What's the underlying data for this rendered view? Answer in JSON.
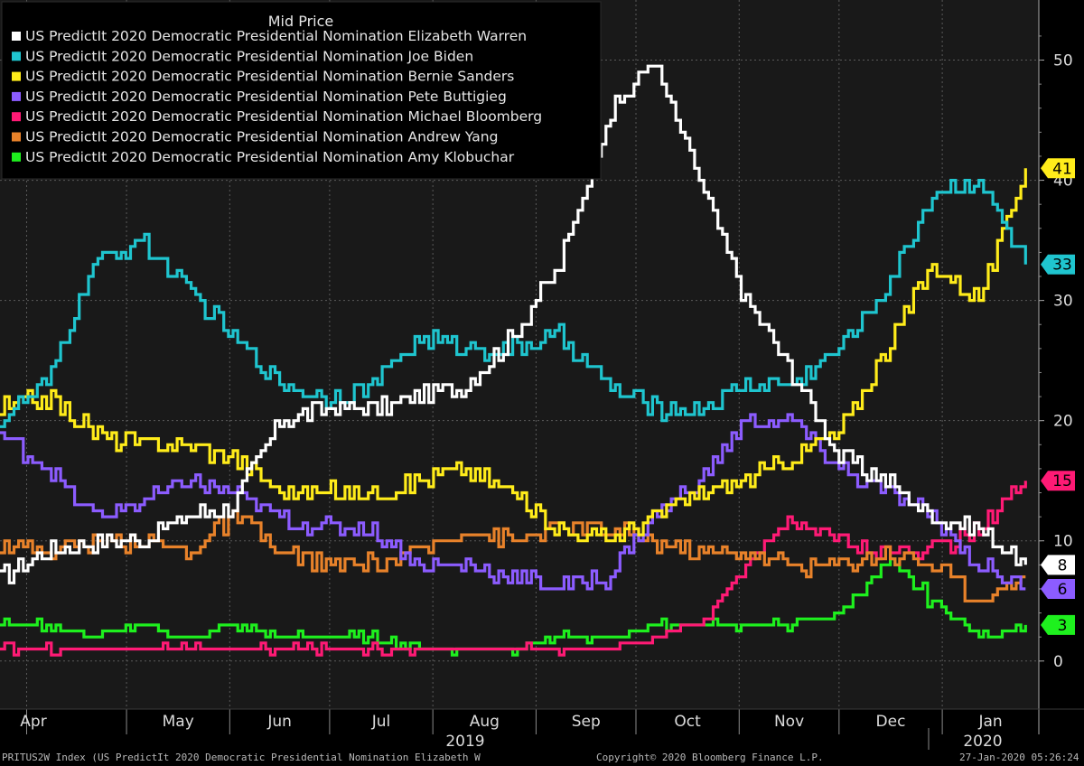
{
  "chart_data": {
    "type": "line",
    "legend_title": "Mid Price",
    "legend_position": "top-left",
    "grid": true,
    "ylim": [
      -4,
      55
    ],
    "y_ticks": [
      0,
      10,
      20,
      30,
      40,
      50
    ],
    "x_ticks": [
      "Apr",
      "May",
      "Jun",
      "Jul",
      "Aug",
      "Sep",
      "Oct",
      "Nov",
      "Dec",
      "Jan"
    ],
    "year_labels": [
      "2019",
      "2020"
    ],
    "x_dates": [
      "2019-03-24",
      "2019-04-07",
      "2019-04-21",
      "2019-05-05",
      "2019-05-19",
      "2019-06-02",
      "2019-06-16",
      "2019-06-30",
      "2019-07-14",
      "2019-07-28",
      "2019-08-11",
      "2019-08-25",
      "2019-09-08",
      "2019-09-22",
      "2019-10-06",
      "2019-10-20",
      "2019-11-03",
      "2019-11-17",
      "2019-12-01",
      "2019-12-15",
      "2019-12-29",
      "2020-01-12",
      "2020-01-26"
    ],
    "series": [
      {
        "name": "US PredictIt 2020 Democratic Presidential Nomination Elizabeth Warren",
        "color": "#ffffff",
        "values": [
          7,
          9,
          10,
          10,
          12,
          13,
          20,
          21,
          21,
          22,
          23,
          27,
          33,
          45,
          50,
          40,
          30,
          24,
          17,
          15,
          12,
          11,
          8
        ],
        "last": "8"
      },
      {
        "name": "US PredictIt 2020 Democratic Presidential Nomination Joe Biden",
        "color": "#1fc5cf",
        "values": [
          20,
          23,
          33,
          35,
          31,
          27,
          23,
          22,
          23,
          27,
          26,
          26,
          27,
          23,
          21,
          21,
          23,
          23,
          26,
          31,
          39,
          40,
          33
        ],
        "last": "33"
      },
      {
        "name": "US PredictIt 2020 Democratic Presidential Nomination Bernie Sanders",
        "color": "#ffec1a",
        "values": [
          21,
          22,
          19,
          18,
          18,
          17,
          14,
          14,
          14,
          15,
          16,
          14,
          11,
          10,
          12,
          14,
          15,
          17,
          19,
          26,
          33,
          30,
          41
        ],
        "last": "41"
      },
      {
        "name": "US PredictIt 2020 Democratic Presidential Nomination Pete Buttigieg",
        "color": "#8c5cff",
        "values": [
          19,
          16,
          12,
          13,
          15,
          14,
          12,
          11,
          11,
          8,
          8,
          7,
          6,
          7,
          12,
          15,
          20,
          20,
          16,
          14,
          12,
          8,
          6
        ],
        "last": "6"
      },
      {
        "name": "US PredictIt 2020 Democratic Presidential Nomination Michael Bloomberg",
        "color": "#ff1a75",
        "values": [
          1,
          1,
          1,
          1,
          1,
          1,
          1,
          1,
          1,
          1,
          1,
          1,
          1,
          1,
          2,
          3,
          8,
          12,
          10,
          9,
          9,
          11,
          15
        ],
        "last": "15"
      },
      {
        "name": "US PredictIt 2020 Democratic Presidential Nomination Andrew Yang",
        "color": "#e8822a",
        "values": [
          10,
          9,
          10,
          10,
          9,
          12,
          9,
          8,
          8,
          9,
          11,
          10,
          11,
          11,
          10,
          9,
          9,
          8,
          8,
          9,
          8,
          5,
          7
        ],
        "last": ""
      },
      {
        "name": "US PredictIt 2020 Democratic Presidential Nomination Amy Klobuchar",
        "color": "#1ef01e",
        "values": [
          3,
          3,
          2,
          3,
          2,
          3,
          2,
          2,
          2,
          1,
          1,
          1,
          2,
          2,
          3,
          3,
          3,
          3,
          4,
          8,
          5,
          2,
          3
        ],
        "last": "3"
      }
    ]
  },
  "footer": {
    "left": "PRITUS2W Index (US PredictIt 2020 Democratic Presidential Nomination Elizabeth W",
    "center": "Copyright© 2020 Bloomberg Finance L.P.",
    "right": "27-Jan-2020 05:26:24"
  }
}
